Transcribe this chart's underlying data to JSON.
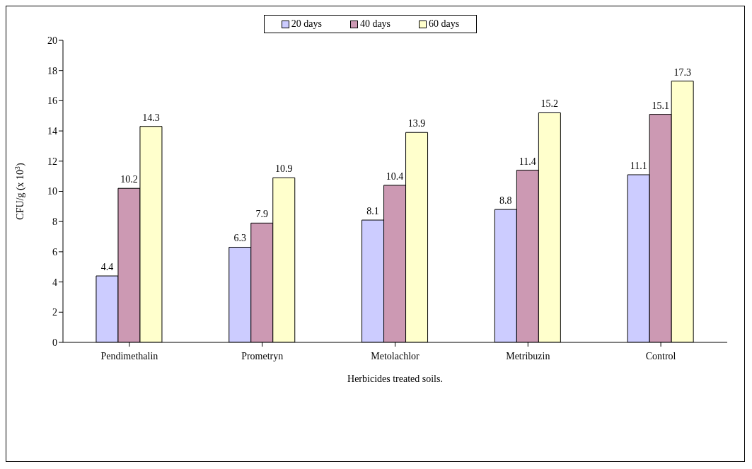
{
  "chart_data": {
    "type": "bar",
    "xlabel": "Herbicides treated soils.",
    "ylabel": "CFU/g (x 10$^{3}$)",
    "categories": [
      "Pendimethalin",
      "Prometryn",
      "Metolachlor",
      "Metribuzin",
      "Control"
    ],
    "series": [
      {
        "name": "20 days",
        "color": "#ccccff",
        "values": [
          4.4,
          6.3,
          8.1,
          8.8,
          11.1
        ]
      },
      {
        "name": "40 days",
        "color": "#cc99b3",
        "values": [
          10.2,
          7.9,
          10.4,
          11.4,
          15.1
        ]
      },
      {
        "name": "60 days",
        "color": "#ffffcc",
        "values": [
          14.3,
          10.9,
          13.9,
          15.2,
          17.3
        ]
      }
    ],
    "ylim": [
      0,
      20
    ],
    "yticks": [
      0,
      2,
      4,
      6,
      8,
      10,
      12,
      14,
      16,
      18,
      20
    ],
    "grid": false,
    "legend": "top",
    "data_labels": true
  }
}
